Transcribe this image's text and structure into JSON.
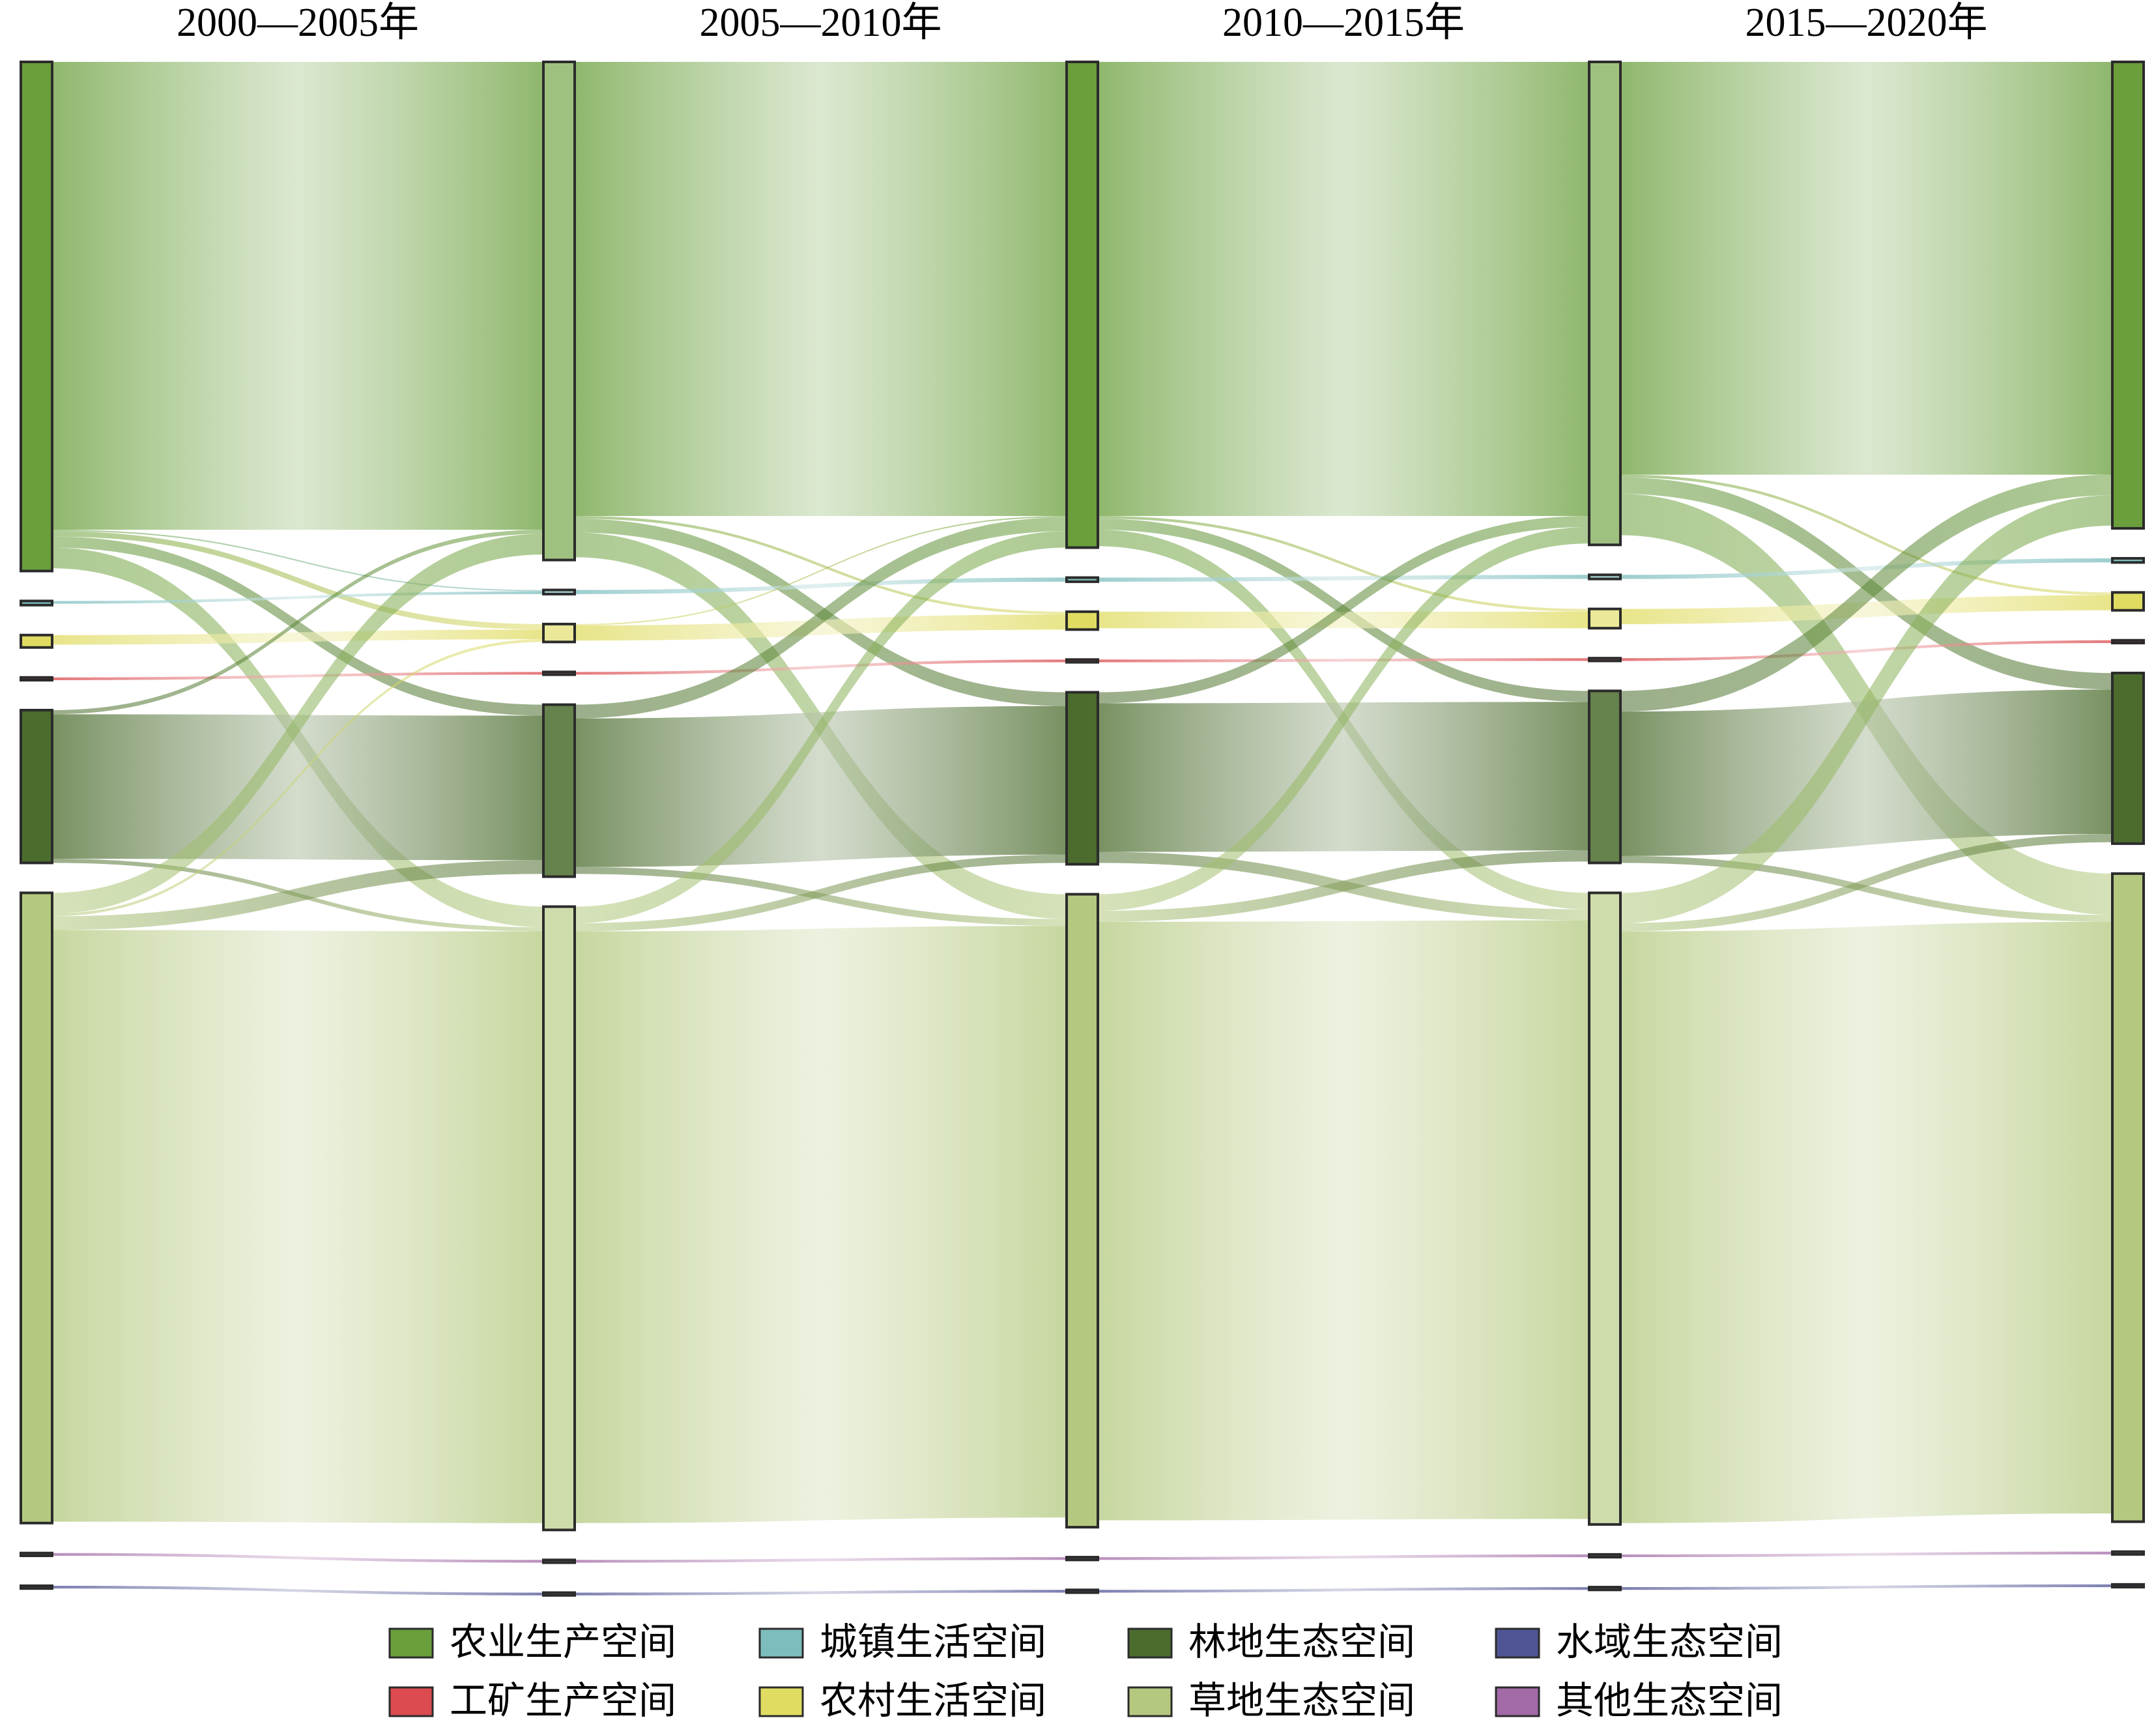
{
  "chart_data": {
    "type": "sankey",
    "periods": [
      "2000—2005年",
      "2005—2010年",
      "2010—2015年",
      "2015—2020年"
    ],
    "categories": [
      "农业生产空间",
      "城镇生活空间",
      "农村生活空间",
      "工矿生产空间",
      "林地生态空间",
      "草地生态空间",
      "其他生态空间",
      "水域生态空间"
    ],
    "colors": [
      "#6a9f3c",
      "#7dbdbd",
      "#e0dc62",
      "#db4b4f",
      "#4b6c2d",
      "#b4c97f",
      "#a26aa6",
      "#4f5594"
    ],
    "nodes": [
      [
        370,
        3,
        9,
        2,
        111,
        458,
        2,
        2
      ],
      [
        362,
        3,
        13,
        2,
        125,
        453,
        2,
        2
      ],
      [
        353,
        3,
        13,
        2,
        125,
        460,
        2,
        2
      ],
      [
        351,
        3,
        14,
        2,
        125,
        459,
        2,
        2
      ],
      [
        339,
        3,
        13,
        2,
        124,
        471,
        2,
        2
      ]
    ],
    "links": [
      [
        {
          "source": 0,
          "target": 0,
          "value": 340
        },
        {
          "source": 0,
          "target": 1,
          "value": 1
        },
        {
          "source": 0,
          "target": 2,
          "value": 4
        },
        {
          "source": 0,
          "target": 4,
          "value": 8
        },
        {
          "source": 0,
          "target": 5,
          "value": 15
        },
        {
          "source": 1,
          "target": 1,
          "value": 2
        },
        {
          "source": 2,
          "target": 2,
          "value": 7
        },
        {
          "source": 3,
          "target": 3,
          "value": 2
        },
        {
          "source": 4,
          "target": 0,
          "value": 3
        },
        {
          "source": 4,
          "target": 4,
          "value": 105
        },
        {
          "source": 4,
          "target": 5,
          "value": 3
        },
        {
          "source": 5,
          "target": 0,
          "value": 15
        },
        {
          "source": 5,
          "target": 2,
          "value": 2
        },
        {
          "source": 5,
          "target": 4,
          "value": 10
        },
        {
          "source": 5,
          "target": 5,
          "value": 430
        },
        {
          "source": 6,
          "target": 6,
          "value": 2
        },
        {
          "source": 7,
          "target": 7,
          "value": 2
        }
      ],
      [
        {
          "source": 0,
          "target": 0,
          "value": 330
        },
        {
          "source": 0,
          "target": 2,
          "value": 2
        },
        {
          "source": 0,
          "target": 4,
          "value": 10
        },
        {
          "source": 0,
          "target": 5,
          "value": 18
        },
        {
          "source": 1,
          "target": 1,
          "value": 3
        },
        {
          "source": 2,
          "target": 0,
          "value": 1
        },
        {
          "source": 2,
          "target": 2,
          "value": 11
        },
        {
          "source": 3,
          "target": 3,
          "value": 2
        },
        {
          "source": 4,
          "target": 0,
          "value": 10
        },
        {
          "source": 4,
          "target": 4,
          "value": 108
        },
        {
          "source": 4,
          "target": 5,
          "value": 5
        },
        {
          "source": 5,
          "target": 0,
          "value": 12
        },
        {
          "source": 5,
          "target": 4,
          "value": 6
        },
        {
          "source": 5,
          "target": 5,
          "value": 430
        },
        {
          "source": 6,
          "target": 6,
          "value": 2
        },
        {
          "source": 7,
          "target": 7,
          "value": 2
        }
      ],
      [
        {
          "source": 0,
          "target": 0,
          "value": 330
        },
        {
          "source": 0,
          "target": 2,
          "value": 2
        },
        {
          "source": 0,
          "target": 4,
          "value": 8
        },
        {
          "source": 0,
          "target": 5,
          "value": 12
        },
        {
          "source": 1,
          "target": 1,
          "value": 3
        },
        {
          "source": 2,
          "target": 2,
          "value": 12
        },
        {
          "source": 3,
          "target": 3,
          "value": 2
        },
        {
          "source": 4,
          "target": 0,
          "value": 8
        },
        {
          "source": 4,
          "target": 4,
          "value": 108
        },
        {
          "source": 4,
          "target": 5,
          "value": 8
        },
        {
          "source": 5,
          "target": 0,
          "value": 12
        },
        {
          "source": 5,
          "target": 4,
          "value": 8
        },
        {
          "source": 5,
          "target": 5,
          "value": 435
        },
        {
          "source": 6,
          "target": 6,
          "value": 2
        },
        {
          "source": 7,
          "target": 7,
          "value": 2
        }
      ],
      [
        {
          "source": 0,
          "target": 0,
          "value": 300
        },
        {
          "source": 0,
          "target": 2,
          "value": 2
        },
        {
          "source": 0,
          "target": 4,
          "value": 12
        },
        {
          "source": 0,
          "target": 5,
          "value": 30
        },
        {
          "source": 1,
          "target": 1,
          "value": 3
        },
        {
          "source": 2,
          "target": 2,
          "value": 11
        },
        {
          "source": 3,
          "target": 3,
          "value": 2
        },
        {
          "source": 4,
          "target": 0,
          "value": 15
        },
        {
          "source": 4,
          "target": 4,
          "value": 105
        },
        {
          "source": 4,
          "target": 5,
          "value": 5
        },
        {
          "source": 5,
          "target": 0,
          "value": 22
        },
        {
          "source": 5,
          "target": 4,
          "value": 6
        },
        {
          "source": 5,
          "target": 5,
          "value": 430
        },
        {
          "source": 6,
          "target": 6,
          "value": 2
        },
        {
          "source": 7,
          "target": 7,
          "value": 2
        }
      ]
    ]
  }
}
